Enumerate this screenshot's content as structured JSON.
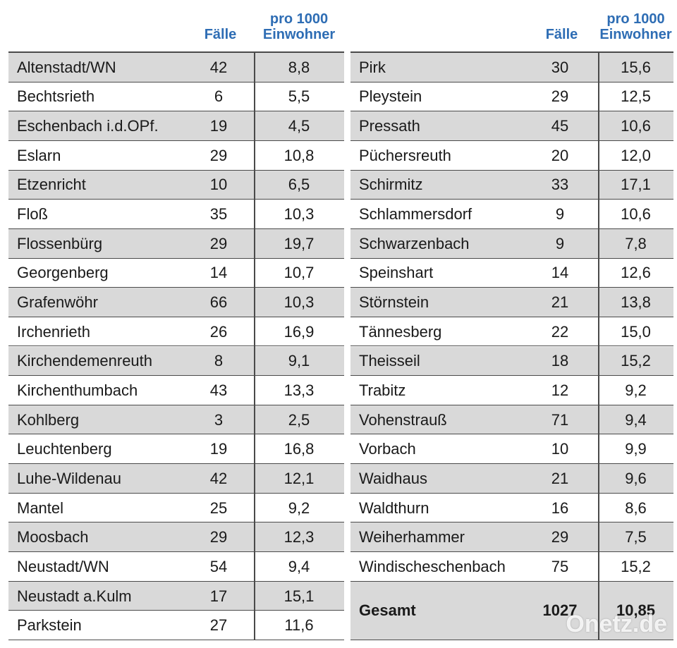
{
  "tables": [
    {
      "headers": [
        "Fälle",
        "pro 1000 Einwohner"
      ],
      "rows": [
        [
          "Altenstadt/WN",
          "42",
          "8,8"
        ],
        [
          "Bechtsrieth",
          "6",
          "5,5"
        ],
        [
          "Eschenbach i.d.OPf.",
          "19",
          "4,5"
        ],
        [
          "Eslarn",
          "29",
          "10,8"
        ],
        [
          "Etzenricht",
          "10",
          "6,5"
        ],
        [
          "Floß",
          "35",
          "10,3"
        ],
        [
          "Flossenbürg",
          "29",
          "19,7"
        ],
        [
          "Georgenberg",
          "14",
          "10,7"
        ],
        [
          "Grafenwöhr",
          "66",
          "10,3"
        ],
        [
          "Irchenrieth",
          "26",
          "16,9"
        ],
        [
          "Kirchendemenreuth",
          "8",
          "9,1"
        ],
        [
          "Kirchenthumbach",
          "43",
          "13,3"
        ],
        [
          "Kohlberg",
          "3",
          "2,5"
        ],
        [
          "Leuchtenberg",
          "19",
          "16,8"
        ],
        [
          "Luhe-Wildenau",
          "42",
          "12,1"
        ],
        [
          "Mantel",
          "25",
          "9,2"
        ],
        [
          "Moosbach",
          "29",
          "12,3"
        ],
        [
          "Neustadt/WN",
          "54",
          "9,4"
        ],
        [
          "Neustadt a.Kulm",
          "17",
          "15,1"
        ],
        [
          "Parkstein",
          "27",
          "11,6"
        ]
      ]
    },
    {
      "headers": [
        "Fälle",
        "pro 1000 Einwohner"
      ],
      "rows": [
        [
          "Pirk",
          "30",
          "15,6"
        ],
        [
          "Pleystein",
          "29",
          "12,5"
        ],
        [
          "Pressath",
          "45",
          "10,6"
        ],
        [
          "Püchersreuth",
          "20",
          "12,0"
        ],
        [
          "Schirmitz",
          "33",
          "17,1"
        ],
        [
          "Schlammersdorf",
          "9",
          "10,6"
        ],
        [
          "Schwarzenbach",
          "9",
          "7,8"
        ],
        [
          "Speinshart",
          "14",
          "12,6"
        ],
        [
          "Störnstein",
          "21",
          "13,8"
        ],
        [
          "Tännesberg",
          "22",
          "15,0"
        ],
        [
          "Theisseil",
          "18",
          "15,2"
        ],
        [
          "Trabitz",
          "12",
          "9,2"
        ],
        [
          "Vohenstrauß",
          "71",
          "9,4"
        ],
        [
          "Vorbach",
          "10",
          "9,9"
        ],
        [
          "Waidhaus",
          "21",
          "9,6"
        ],
        [
          "Waldthurn",
          "16",
          "8,6"
        ],
        [
          "Weiherhammer",
          "29",
          "7,5"
        ],
        [
          "Windischeschenbach",
          "75",
          "15,2"
        ]
      ],
      "total": [
        "Gesamt",
        "1027",
        "10,85"
      ]
    }
  ],
  "watermark": "Onetz.de"
}
